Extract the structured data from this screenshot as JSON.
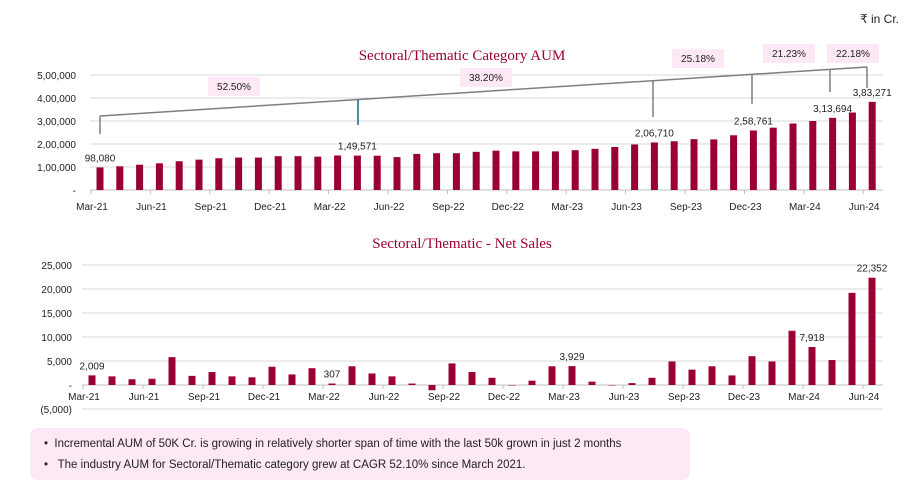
{
  "unit_label": "₹ in Cr.",
  "colors": {
    "bar": "#9b0033",
    "title": "#9b0033",
    "trend": "#7f7f7f",
    "marker_mar22": "#1f5f7f",
    "label_bg": "#fde8f6",
    "grid": "#d9d9d9"
  },
  "chart_data": [
    {
      "type": "bar",
      "title": "Sectoral/Thematic Category AUM",
      "categories": [
        "Mar-21",
        "Apr-21",
        "May-21",
        "Jun-21",
        "Jul-21",
        "Aug-21",
        "Sep-21",
        "Oct-21",
        "Nov-21",
        "Dec-21",
        "Jan-22",
        "Feb-22",
        "Mar-22",
        "Apr-22",
        "May-22",
        "Jun-22",
        "Jul-22",
        "Aug-22",
        "Sep-22",
        "Oct-22",
        "Nov-22",
        "Dec-22",
        "Jan-23",
        "Feb-23",
        "Mar-23",
        "Apr-23",
        "May-23",
        "Jun-23",
        "Jul-23",
        "Aug-23",
        "Sep-23",
        "Oct-23",
        "Nov-23",
        "Dec-23",
        "Jan-24",
        "Feb-24",
        "Mar-24",
        "Apr-24",
        "May-24",
        "Jun-24"
      ],
      "values": [
        98080,
        103000,
        110000,
        116000,
        125000,
        132000,
        138000,
        141000,
        141000,
        147000,
        147000,
        145000,
        150000,
        149571,
        149000,
        143000,
        157000,
        160000,
        160000,
        166000,
        171000,
        168000,
        168000,
        168000,
        173000,
        179000,
        187000,
        198000,
        206710,
        212000,
        221000,
        220000,
        238000,
        258761,
        271000,
        289000,
        300000,
        313694,
        337000,
        383271
      ],
      "data_labels": [
        {
          "index": 0,
          "text": "98,080"
        },
        {
          "index": 13,
          "text": "1,49,571"
        },
        {
          "index": 28,
          "text": "2,06,710"
        },
        {
          "index": 33,
          "text": "2,58,761"
        },
        {
          "index": 37,
          "text": "3,13,694"
        },
        {
          "index": 39,
          "text": "3,83,271"
        }
      ],
      "tick_labels": [
        "Mar-21",
        "Jun-21",
        "Sep-21",
        "Dec-21",
        "Mar-22",
        "Jun-22",
        "Sep-22",
        "Dec-22",
        "Mar-23",
        "Jun-23",
        "Sep-23",
        "Dec-23",
        "Mar-24",
        "Jun-24"
      ],
      "y_tick_labels": [
        "-",
        "1,00,000",
        "2,00,000",
        "3,00,000",
        "4,00,000",
        "5,00,000"
      ],
      "ylim": [
        0,
        500000
      ],
      "grid": true,
      "growth_annotations": [
        "52.50%",
        "38.20%",
        "25.18%",
        "21.23%",
        "22.18%"
      ]
    },
    {
      "type": "bar",
      "title": "Sectoral/Thematic - Net Sales",
      "categories": [
        "Mar-21",
        "Apr-21",
        "May-21",
        "Jun-21",
        "Jul-21",
        "Aug-21",
        "Sep-21",
        "Oct-21",
        "Nov-21",
        "Dec-21",
        "Jan-22",
        "Feb-22",
        "Mar-22",
        "Apr-22",
        "May-22",
        "Jun-22",
        "Jul-22",
        "Aug-22",
        "Sep-22",
        "Oct-22",
        "Nov-22",
        "Dec-22",
        "Jan-23",
        "Feb-23",
        "Mar-23",
        "Apr-23",
        "May-23",
        "Jun-23",
        "Jul-23",
        "Aug-23",
        "Sep-23",
        "Oct-23",
        "Nov-23",
        "Dec-23",
        "Jan-24",
        "Feb-24",
        "Mar-24",
        "Apr-24",
        "May-24",
        "Jun-24"
      ],
      "values": [
        2009,
        1800,
        1200,
        1300,
        5800,
        1900,
        2700,
        1800,
        1600,
        3800,
        2200,
        3500,
        307,
        3900,
        2400,
        1800,
        300,
        -1100,
        4500,
        2700,
        1500,
        -100,
        900,
        3900,
        3929,
        700,
        0,
        400,
        1500,
        4900,
        3200,
        3900,
        2000,
        6000,
        4900,
        11300,
        7918,
        5200,
        19200,
        22352
      ],
      "data_labels": [
        {
          "index": 0,
          "text": "2,009"
        },
        {
          "index": 12,
          "text": "307"
        },
        {
          "index": 24,
          "text": "3,929"
        },
        {
          "index": 36,
          "text": "7,918"
        },
        {
          "index": 39,
          "text": "22,352"
        }
      ],
      "tick_labels": [
        "Mar-21",
        "Jun-21",
        "Sep-21",
        "Dec-21",
        "Mar-22",
        "Jun-22",
        "Sep-22",
        "Dec-22",
        "Mar-23",
        "Jun-23",
        "Sep-23",
        "Dec-23",
        "Mar-24",
        "Jun-24"
      ],
      "y_tick_labels": [
        "(5,000)",
        "-",
        "5,000",
        "10,000",
        "15,000",
        "20,000",
        "25,000"
      ],
      "ylim": [
        -5000,
        25000
      ],
      "grid": true
    }
  ],
  "notes": [
    "Incremental AUM of 50K Cr. is growing in relatively shorter span of time with the last 50k grown in just 2 months",
    "The industry AUM for Sectoral/Thematic category grew at CAGR 52.10% since March 2021."
  ]
}
